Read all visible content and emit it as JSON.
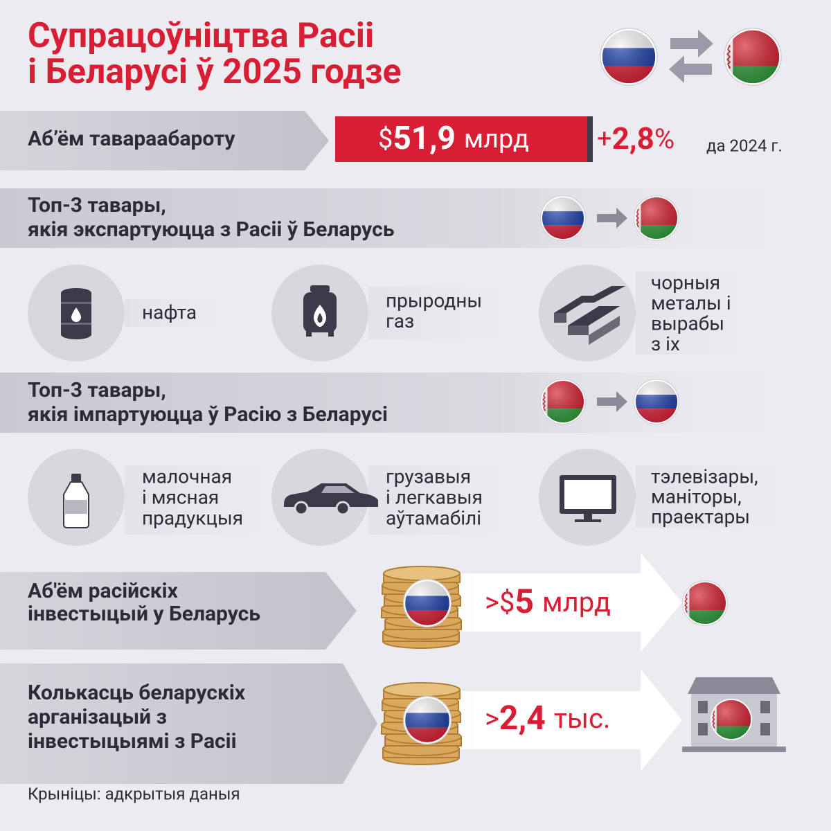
{
  "header": {
    "title": [
      "Супрацоўніцтва Расіі",
      "і Беларусі ў 2025 годзе"
    ]
  },
  "trade": {
    "label": "Аб’ём тавараабароту",
    "value": {
      "currency": "$",
      "amount": "51,9",
      "unit": "млрд"
    },
    "change": {
      "sign": "+",
      "amount": "2,8",
      "unit": "%"
    },
    "comparison": "да 2024 г."
  },
  "exports": {
    "heading": [
      "Топ-3 тавары,",
      "якія экспартуюцца з Расіі ў Беларусь"
    ],
    "items": [
      {
        "label": [
          "нафта"
        ]
      },
      {
        "label": [
          "прыродны",
          "газ"
        ]
      },
      {
        "label": [
          "чорныя",
          "металы і",
          "вырабы",
          "з іх"
        ]
      }
    ]
  },
  "imports": {
    "heading": [
      "Топ-3 тавары,",
      "якія імпартуюцца ў Расію з Беларусі"
    ],
    "items": [
      {
        "label": [
          "малочная",
          "і мясная",
          "прадукцыя"
        ]
      },
      {
        "label": [
          "грузавыя",
          "і легкавыя",
          "аўтамабілі"
        ]
      },
      {
        "label": [
          "тэлевізары,",
          "маніторы,",
          "праектары"
        ]
      }
    ]
  },
  "investments": {
    "label": [
      "Аб'ём расійскіх",
      "інвестыцый у Беларусь"
    ],
    "value": {
      "prefix": ">$",
      "amount": "5",
      "unit": "млрд"
    }
  },
  "organizations": {
    "label": [
      "Колькасць беларускіх",
      "арганізацый з",
      "інвестыцыямі з Расіі"
    ],
    "value": {
      "prefix": ">",
      "amount": "2,4",
      "unit": "тыс."
    }
  },
  "source": "Крыніцы: адкрытыя даныя"
}
